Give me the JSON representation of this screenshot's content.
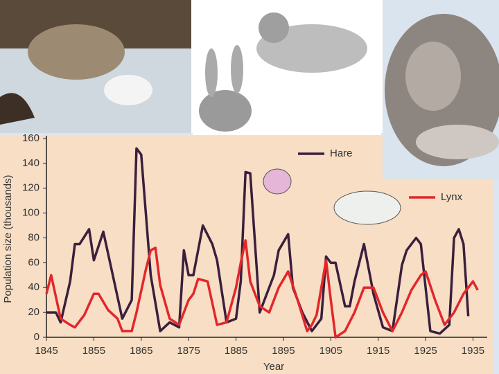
{
  "chart_data": {
    "type": "line",
    "x_label": "Year",
    "y_label": "Population size (thousands)",
    "xlim": [
      1845,
      1938
    ],
    "ylim": [
      0,
      160
    ],
    "xticks": [
      1845,
      1855,
      1865,
      1875,
      1885,
      1895,
      1905,
      1915,
      1925,
      1935
    ],
    "yticks": [
      0,
      20,
      40,
      60,
      80,
      100,
      120,
      140,
      160
    ],
    "legend": "upper right",
    "series": [
      {
        "name": "Hare",
        "color": "#3b1f3d",
        "x": [
          1845,
          1847,
          1848,
          1850,
          1851,
          1852,
          1854,
          1855,
          1857,
          1859,
          1861,
          1863,
          1864,
          1865,
          1867,
          1869,
          1871,
          1873,
          1874,
          1875,
          1876,
          1878,
          1880,
          1881,
          1883,
          1885,
          1886,
          1887,
          1888,
          1890,
          1891,
          1893,
          1894,
          1896,
          1897,
          1899,
          1901,
          1903,
          1904,
          1905,
          1906,
          1908,
          1909,
          1910,
          1912,
          1914,
          1916,
          1918,
          1920,
          1921,
          1923,
          1924,
          1926,
          1928,
          1930,
          1931,
          1932,
          1933,
          1934
        ],
        "values": [
          20,
          20,
          12,
          45,
          75,
          75,
          87,
          62,
          85,
          50,
          15,
          30,
          152,
          147,
          50,
          5,
          12,
          8,
          70,
          50,
          50,
          90,
          75,
          62,
          12,
          15,
          45,
          133,
          132,
          20,
          30,
          50,
          70,
          83,
          40,
          20,
          5,
          15,
          65,
          60,
          60,
          25,
          25,
          45,
          75,
          35,
          8,
          5,
          58,
          70,
          80,
          75,
          5,
          3,
          10,
          80,
          87,
          75,
          17
        ]
      },
      {
        "name": "Lynx",
        "color": "#e3262b",
        "x": [
          1845,
          1846,
          1848,
          1850,
          1851,
          1853,
          1855,
          1856,
          1858,
          1860,
          1861,
          1863,
          1864,
          1866,
          1867,
          1868,
          1869,
          1871,
          1873,
          1875,
          1876,
          1877,
          1879,
          1881,
          1883,
          1885,
          1886,
          1887,
          1888,
          1890,
          1892,
          1894,
          1896,
          1898,
          1900,
          1901,
          1902,
          1904,
          1905,
          1906,
          1908,
          1910,
          1912,
          1914,
          1916,
          1918,
          1920,
          1922,
          1924,
          1925,
          1927,
          1929,
          1931,
          1933,
          1935,
          1936
        ],
        "values": [
          35,
          50,
          15,
          10,
          8,
          18,
          35,
          35,
          22,
          15,
          5,
          5,
          20,
          55,
          70,
          72,
          42,
          15,
          10,
          30,
          35,
          47,
          45,
          10,
          12,
          40,
          60,
          78,
          45,
          25,
          20,
          40,
          53,
          30,
          5,
          10,
          18,
          62,
          30,
          0,
          5,
          20,
          40,
          40,
          20,
          5,
          20,
          38,
          50,
          53,
          30,
          10,
          20,
          35,
          45,
          38
        ]
      }
    ]
  }
}
